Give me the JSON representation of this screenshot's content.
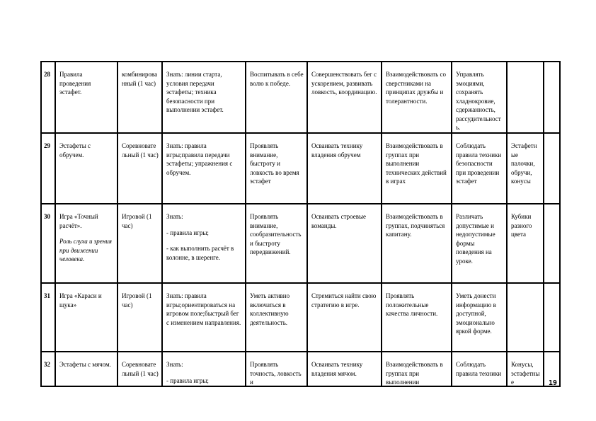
{
  "table": {
    "rows": [
      {
        "num": "28",
        "cells": [
          [
            "Правила проведения эстафет."
          ],
          [
            "комбинированный (1 час)"
          ],
          [
            "Знать: линии старта, условия передачи эстафеты; техника безопасности при выполнении эстафет."
          ],
          [
            "Воспитывать в себе волю к победе."
          ],
          [
            "Совершенствовать бег с ускорением, развивать ловкость, координацию."
          ],
          [
            "Взаимодействовать со сверстниками на принципах дружбы и толерантности."
          ],
          [
            "Управлять эмоциями, сохранять хладнокровие, сдержанность, рассудительность."
          ],
          [],
          []
        ]
      },
      {
        "num": "29",
        "cells": [
          [
            "Эстафеты с обручем."
          ],
          [
            "Соревновательный (1 час)"
          ],
          [
            "Знать: правила игры;правила передачи эстафеты; упражнения с обручем."
          ],
          [
            "Проявлять внимание, быстроту и ловкость во время эстафет"
          ],
          [
            "Осваивать технику владения обручем"
          ],
          [
            "Взаимодействовать в группах при выполнении технических действий в играх"
          ],
          [
            "Соблюдать правила техники безопасности при проведении эстафет"
          ],
          [
            "Эстафетные палочки, обручи, конусы"
          ],
          []
        ]
      },
      {
        "num": "30",
        "cells": [
          [
            "Игра «Точный расчёт».",
            "*Роль слуха и зрения при движении человека."
          ],
          [
            "Игровой (1 час)"
          ],
          [
            "Знать:",
            "- правила игры;",
            "- как выполнить расчёт в колонне, в шеренге."
          ],
          [
            "Проявлять внимание, сообразительность и быстроту передвижений."
          ],
          [
            "Осваивать строевые команды."
          ],
          [
            "Взаимодействовать в группах, подчиняться капитану."
          ],
          [
            "Различать допустимые и недопустимые формы поведения на уроке."
          ],
          [
            "Кубики разного цвета"
          ],
          []
        ]
      },
      {
        "num": "31",
        "cells": [
          [
            "Игра «Караси и щука»"
          ],
          [
            "Игровой (1 час)"
          ],
          [
            "Знать: правила игры;ориентироваться на игровом поле;быстрый бег с изменением направления."
          ],
          [
            "Уметь активно включаться в коллективную деятельность."
          ],
          [
            "Стремиться найти свою стратегию в игре."
          ],
          [
            "Проявлять положительные качества личности."
          ],
          [
            "Уметь донести информацию в доступной, эмоционально яркой форме."
          ],
          [],
          []
        ]
      },
      {
        "num": "32",
        "cells": [
          [
            "Эстафеты с мячом."
          ],
          [
            "Соревновательный (1 час)"
          ],
          [
            "Знать:",
            "- правила игры;"
          ],
          [
            "Проявлять точность, ловкость и"
          ],
          [
            "Осваивать технику владения мячом."
          ],
          [
            "Взаимодействовать в группах при выполнении"
          ],
          [
            "Соблюдать правила техники"
          ],
          [
            "Конусы, эстафетные"
          ],
          []
        ]
      }
    ]
  },
  "page_number": "19"
}
